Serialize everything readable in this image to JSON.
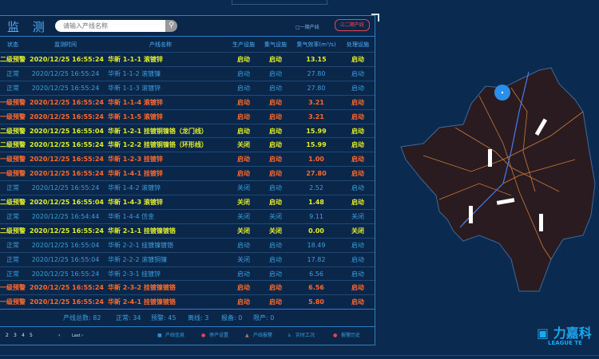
{
  "header": {
    "title": "监 测",
    "search_placeholder": "请输入产线名称",
    "search_icon": "search-icon",
    "phase1": "□一期产线",
    "phase2": "☑二期产线"
  },
  "columns": [
    "状态",
    "监测时间",
    "产线名称",
    "生产设施",
    "集气设施",
    "集气效率(m³/s)",
    "处理设施"
  ],
  "colors": {
    "normal": "#3aa0e0",
    "level2": "#e2ef2a",
    "level1": "#ff6a2c"
  },
  "rows": [
    {
      "level": "level2",
      "cells": [
        "二级预警",
        "2020/12/25 16:55:24",
        "华新 1-1-1 滚镀锌",
        "启动",
        "启动",
        "13.15",
        "启动"
      ]
    },
    {
      "level": "normal",
      "cells": [
        "正常",
        "2020/12/25 16:55:24",
        "华新 1-1-2 滚镀镍",
        "启动",
        "启动",
        "27.80",
        "启动"
      ]
    },
    {
      "level": "normal",
      "cells": [
        "正常",
        "2020/12/25 16:55:24",
        "华新 1-1-3 滚镀锌",
        "启动",
        "启动",
        "27.80",
        "启动"
      ]
    },
    {
      "level": "level1",
      "cells": [
        "一级预警",
        "2020/12/25 16:55:24",
        "华新 1-1-4 滚镀锌",
        "启动",
        "启动",
        "3.21",
        "启动"
      ]
    },
    {
      "level": "level1",
      "cells": [
        "一级预警",
        "2020/12/25 16:55:24",
        "华新 1-1-5 滚镀锌",
        "启动",
        "启动",
        "3.21",
        "启动"
      ]
    },
    {
      "level": "level2",
      "cells": [
        "二级预警",
        "2020/12/25 16:55:04",
        "华新 1-2-1 挂镀铜镍铬（龙门线）",
        "启动",
        "启动",
        "15.99",
        "启动"
      ]
    },
    {
      "level": "level2",
      "cells": [
        "二级预警",
        "2020/12/25 16:55:24",
        "华新 1-2-2 挂镀铜镍铬（环形线）",
        "关闭",
        "启动",
        "15.99",
        "启动"
      ]
    },
    {
      "level": "level1",
      "cells": [
        "一级预警",
        "2020/12/25 16:55:24",
        "华新 1-2-3 挂镀锌",
        "启动",
        "启动",
        "1.00",
        "启动"
      ]
    },
    {
      "level": "level1",
      "cells": [
        "一级预警",
        "2020/12/25 16:55:24",
        "华新 1-4-1 挂镀锌",
        "启动",
        "启动",
        "27.80",
        "启动"
      ]
    },
    {
      "level": "normal",
      "cells": [
        "正常",
        "2020/12/25 16:55:24",
        "华新 1-4-2 滚镀锌",
        "关闭",
        "启动",
        "2.52",
        "启动"
      ]
    },
    {
      "level": "level2",
      "cells": [
        "二级预警",
        "2020/12/25 16:55:04",
        "华新 1-4-3 滚镀锌",
        "关闭",
        "启动",
        "1.48",
        "启动"
      ]
    },
    {
      "level": "normal",
      "cells": [
        "正常",
        "2020/12/25 16:54:44",
        "华新 1-4-4 仿金",
        "关闭",
        "关闭",
        "9.11",
        "关闭"
      ]
    },
    {
      "level": "level2",
      "cells": [
        "二级预警",
        "2020/12/25 16:55:24",
        "华新 2-1-1 挂镀镍镀铬",
        "关闭",
        "关闭",
        "0.00",
        "关闭"
      ]
    },
    {
      "level": "normal",
      "cells": [
        "正常",
        "2020/12/25 16:55:04",
        "华新 2-2-1 挂镀镍镀铬",
        "启动",
        "启动",
        "18.49",
        "启动"
      ]
    },
    {
      "level": "normal",
      "cells": [
        "正常",
        "2020/12/25 16:55:04",
        "华新 2-2-2 滚镀铜镍",
        "关闭",
        "启动",
        "17.82",
        "启动"
      ]
    },
    {
      "level": "normal",
      "cells": [
        "正常",
        "2020/12/25 16:55:24",
        "华新 2-3-1 挂镀锌",
        "启动",
        "启动",
        "6.56",
        "启动"
      ]
    },
    {
      "level": "level1",
      "cells": [
        "一级预警",
        "2020/12/25 16:55:24",
        "华新 2-3-2 挂镀镍镀铬",
        "启动",
        "启动",
        "6.56",
        "启动"
      ]
    },
    {
      "level": "level1",
      "cells": [
        "一级预警",
        "2020/12/25 16:55:24",
        "华新 2-4-1 挂镀镍镀铬",
        "启动",
        "启动",
        "5.80",
        "启动"
      ]
    }
  ],
  "summary": {
    "total": "产线总数: 82",
    "normal": "正常: 34",
    "warning": "预警: 45",
    "offline": "离线: 3",
    "standby": "报备: 0",
    "stopped": "限产: 0"
  },
  "pager": [
    "2",
    "3",
    "4",
    "5",
    "›",
    "Last ›"
  ],
  "legend": [
    {
      "icon": "info-icon",
      "label": "产线信息",
      "color": "#2a8fe0"
    },
    {
      "icon": "stop-setting-icon",
      "label": "停产设置",
      "color": "#e04a5a"
    },
    {
      "icon": "alarm-triangle-icon",
      "label": "产线报警",
      "color": "#b07a5a"
    },
    {
      "icon": "realtime-icon",
      "label": "实时工况",
      "color": "#2a8fe0"
    },
    {
      "icon": "alarm-history-icon",
      "label": "报警历史",
      "color": "#e04a5a"
    }
  ],
  "logo": {
    "cn": "力嘉科",
    "en": "LEAGUE TE"
  }
}
